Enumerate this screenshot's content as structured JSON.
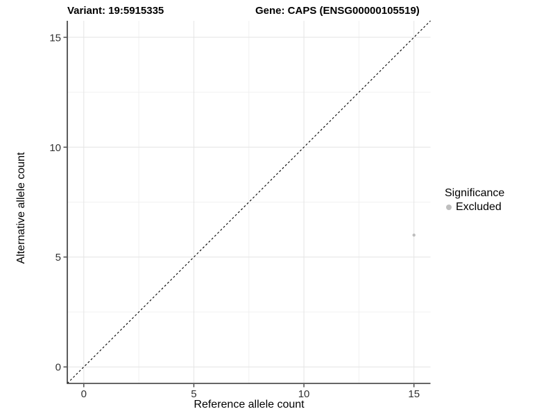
{
  "titles": {
    "variant": "Variant: 19:5915335",
    "gene": "Gene: CAPS (ENSG00000105519)"
  },
  "colors": {
    "background": "#ffffff",
    "axis_line": "#333333",
    "tick_mark": "#333333",
    "tick_label": "#303030",
    "grid_major": "#e4e4e4",
    "grid_minor": "#f0f0f0",
    "identity_line": "#000000",
    "point": "#bebebe"
  },
  "chart_data": {
    "type": "scatter",
    "title_left": "Variant: 19:5915335",
    "title_right": "Gene: CAPS (ENSG00000105519)",
    "xlabel": "Reference allele count",
    "ylabel": "Alternative allele count",
    "xlim": [
      -0.75,
      15.75
    ],
    "ylim": [
      -0.75,
      15.75
    ],
    "x_ticks": [
      0,
      5,
      10,
      15
    ],
    "y_ticks": [
      0,
      5,
      10,
      15
    ],
    "x_minor_ticks": [
      2.5,
      7.5,
      12.5
    ],
    "y_minor_ticks": [
      2.5,
      7.5,
      12.5
    ],
    "grid": "major+minor",
    "identity_line": {
      "style": "dashed",
      "color": "#000000",
      "slope": 1,
      "intercept": 0
    },
    "series": [
      {
        "name": "Excluded",
        "color": "#bebebe",
        "points": [
          {
            "x": 15,
            "y": 6
          }
        ]
      }
    ],
    "legend": {
      "title": "Significance",
      "position": "right",
      "items": [
        {
          "label": "Excluded",
          "color": "#bebebe"
        }
      ]
    }
  }
}
